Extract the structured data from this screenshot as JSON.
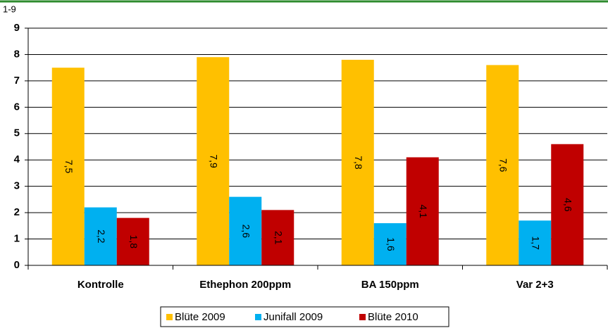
{
  "chart_data": {
    "type": "bar",
    "y_label": "1-9",
    "categories": [
      "Kontrolle",
      "Ethephon 200ppm",
      "BA 150ppm",
      "Var 2+3"
    ],
    "series": [
      {
        "name": "Blüte 2009",
        "color": "#ffc000",
        "values": [
          7.5,
          7.9,
          7.8,
          7.6
        ],
        "value_labels": [
          "7,5",
          "7,9",
          "7,8",
          "7,6"
        ]
      },
      {
        "name": "Junifall 2009",
        "color": "#00b0f0",
        "values": [
          2.2,
          2.6,
          1.6,
          1.7
        ],
        "value_labels": [
          "2,2",
          "2,6",
          "1,6",
          "1,7"
        ]
      },
      {
        "name": "Blüte 2010",
        "color": "#c00000",
        "values": [
          1.8,
          2.1,
          4.1,
          4.6
        ],
        "value_labels": [
          "1,8",
          "2,1",
          "4,1",
          "4,6"
        ]
      }
    ],
    "ylim": [
      0,
      9
    ],
    "yticks": [
      0,
      1,
      2,
      3,
      4,
      5,
      6,
      7,
      8,
      9
    ],
    "grid": true,
    "legend": "bottom"
  }
}
